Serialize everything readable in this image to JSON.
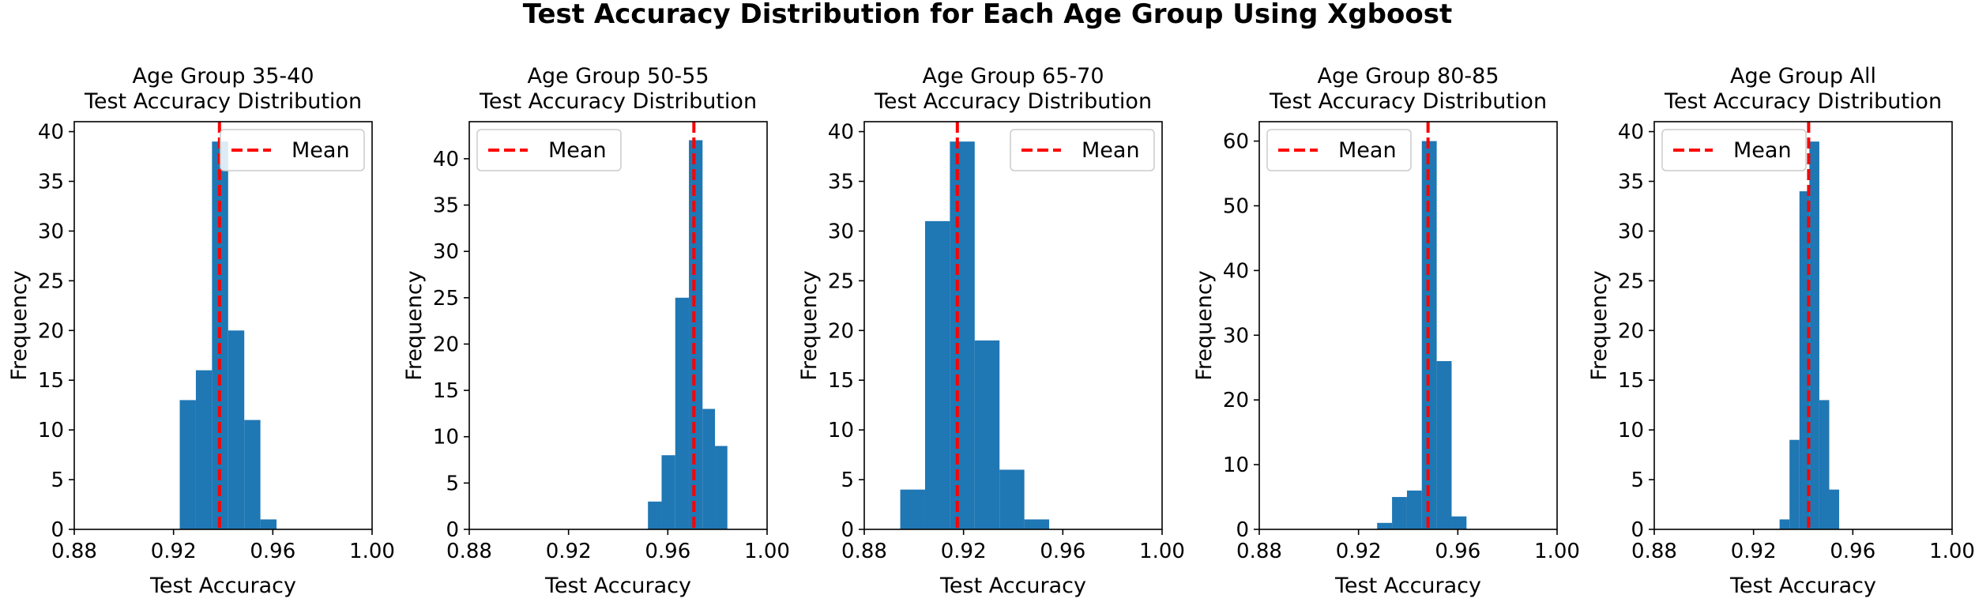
{
  "figure_title": "Test Accuracy Distribution for Each Age Group Using Xgboost",
  "colors": {
    "bar": "#1f77b4",
    "mean_line": "#ff0000",
    "axis": "#000000",
    "legend_border": "#cccccc"
  },
  "chart_data": [
    {
      "type": "bar",
      "title_line1": "Age Group 35-40",
      "title_line2": "Test Accuracy Distribution",
      "xlabel": "Test Accuracy",
      "ylabel": "Frequency",
      "xlim": [
        0.88,
        1.0
      ],
      "ylim": [
        0,
        41
      ],
      "xticks": [
        "0.88",
        "0.92",
        "0.96",
        "1.00"
      ],
      "xtick_values": [
        0.88,
        0.92,
        0.96,
        1.0
      ],
      "yticks": [
        0,
        5,
        10,
        15,
        20,
        25,
        30,
        35,
        40
      ],
      "bin_edges": [
        0.9225,
        0.929,
        0.9355,
        0.942,
        0.9485,
        0.955,
        0.9615
      ],
      "values": [
        13,
        16,
        39,
        20,
        11,
        1
      ],
      "mean": 0.9385,
      "legend_label": "Mean",
      "legend_position": "upper-right"
    },
    {
      "type": "bar",
      "title_line1": "Age Group 50-55",
      "title_line2": "Test Accuracy Distribution",
      "xlabel": "Test Accuracy",
      "ylabel": "Frequency",
      "xlim": [
        0.88,
        1.0
      ],
      "ylim": [
        0,
        44
      ],
      "xticks": [
        "0.88",
        "0.92",
        "0.96",
        "1.00"
      ],
      "xtick_values": [
        0.88,
        0.92,
        0.96,
        1.0
      ],
      "yticks": [
        0,
        5,
        10,
        15,
        20,
        25,
        30,
        35,
        40
      ],
      "bin_edges": [
        0.952,
        0.9575,
        0.963,
        0.9685,
        0.974,
        0.979,
        0.984
      ],
      "values": [
        3,
        8,
        25,
        42,
        13,
        9
      ],
      "mean": 0.9705,
      "legend_label": "Mean",
      "legend_position": "upper-left"
    },
    {
      "type": "bar",
      "title_line1": "Age Group 65-70",
      "title_line2": "Test Accuracy Distribution",
      "xlabel": "Test Accuracy",
      "ylabel": "Frequency",
      "xlim": [
        0.88,
        1.0
      ],
      "ylim": [
        0,
        41
      ],
      "xticks": [
        "0.88",
        "0.92",
        "0.96",
        "1.00"
      ],
      "xtick_values": [
        0.88,
        0.92,
        0.96,
        1.0
      ],
      "yticks": [
        0,
        5,
        10,
        15,
        20,
        25,
        30,
        35,
        40
      ],
      "bin_edges": [
        0.8945,
        0.9045,
        0.9145,
        0.9245,
        0.9345,
        0.9445,
        0.9545
      ],
      "values": [
        4,
        31,
        39,
        19,
        6,
        1
      ],
      "mean": 0.9175,
      "legend_label": "Mean",
      "legend_position": "upper-right"
    },
    {
      "type": "bar",
      "title_line1": "Age Group 80-85",
      "title_line2": "Test Accuracy Distribution",
      "xlabel": "Test Accuracy",
      "ylabel": "Frequency",
      "xlim": [
        0.88,
        1.0
      ],
      "ylim": [
        0,
        63
      ],
      "xticks": [
        "0.88",
        "0.92",
        "0.96",
        "1.00"
      ],
      "xtick_values": [
        0.88,
        0.92,
        0.96,
        1.0
      ],
      "yticks": [
        0,
        10,
        20,
        30,
        40,
        50,
        60
      ],
      "bin_edges": [
        0.9275,
        0.9335,
        0.9395,
        0.9455,
        0.9515,
        0.9575,
        0.9635
      ],
      "values": [
        1,
        5,
        6,
        60,
        26,
        2
      ],
      "mean": 0.948,
      "legend_label": "Mean",
      "legend_position": "upper-left"
    },
    {
      "type": "bar",
      "title_line1": "Age Group All",
      "title_line2": "Test Accuracy Distribution",
      "xlabel": "Test Accuracy",
      "ylabel": "Frequency",
      "xlim": [
        0.88,
        1.0
      ],
      "ylim": [
        0,
        41
      ],
      "xticks": [
        "0.88",
        "0.92",
        "0.96",
        "1.00"
      ],
      "xtick_values": [
        0.88,
        0.92,
        0.96,
        1.0
      ],
      "yticks": [
        0,
        5,
        10,
        15,
        20,
        25,
        30,
        35,
        40
      ],
      "bin_edges": [
        0.9305,
        0.9345,
        0.9385,
        0.9425,
        0.9465,
        0.9505,
        0.9545
      ],
      "values": [
        1,
        9,
        34,
        39,
        13,
        4
      ],
      "mean": 0.9422,
      "legend_label": "Mean",
      "legend_position": "upper-left"
    }
  ]
}
